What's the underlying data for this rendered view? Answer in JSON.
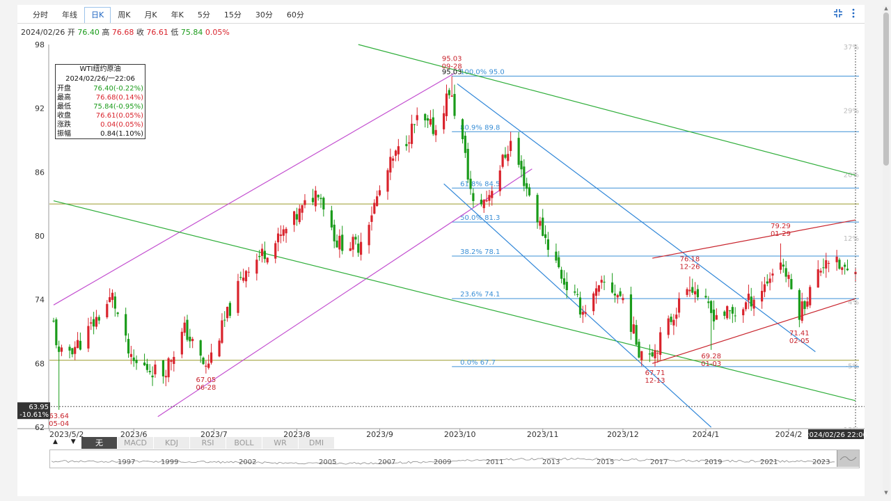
{
  "tabs": [
    {
      "label": "分时",
      "active": false
    },
    {
      "label": "年线",
      "active": false
    },
    {
      "label": "日K",
      "active": true
    },
    {
      "label": "周K",
      "active": false
    },
    {
      "label": "月K",
      "active": false
    },
    {
      "label": "年K",
      "active": false
    },
    {
      "label": "5分",
      "active": false
    },
    {
      "label": "15分",
      "active": false
    },
    {
      "label": "30分",
      "active": false
    },
    {
      "label": "60分",
      "active": false
    }
  ],
  "toolbar": {
    "collapse_icon": "collapse-icon",
    "more_icon": "more-vert-icon"
  },
  "info_bar": {
    "date": "2024/02/26",
    "open_label": "开",
    "open": "76.40",
    "high_label": "高",
    "high": "76.68",
    "close_label": "收",
    "close": "76.61",
    "low_label": "低",
    "low": "75.84",
    "change": "0.05%"
  },
  "legend": {
    "title": "WTI纽约原油",
    "datetime": "2024/02/26/一22:06",
    "rows": [
      {
        "label": "开盘",
        "value": "76.40(-0.22%)",
        "color": "green"
      },
      {
        "label": "最高",
        "value": "76.68(0.14%)",
        "color": "red"
      },
      {
        "label": "最低",
        "value": "75.84(-0.95%)",
        "color": "green"
      },
      {
        "label": "收盘",
        "value": "76.61(0.05%)",
        "color": "red"
      },
      {
        "label": "涨跌",
        "value": "0.04(0.05%)",
        "color": "red"
      },
      {
        "label": "振幅",
        "value": "0.84(1.10%)",
        "color": "black"
      }
    ]
  },
  "cursor": {
    "price": "63.95",
    "pct": "-10.61%",
    "time": "2024/02/26 22:06"
  },
  "indicators": [
    "无",
    "MACD",
    "KDJ",
    "RSI",
    "BOLL",
    "WR",
    "DMI"
  ],
  "nav_arrows": "▲ ▼",
  "mini_years": [
    "1997",
    "1999",
    "2002",
    "2005",
    "2007",
    "2009",
    "2011",
    "2013",
    "2015",
    "2017",
    "2019",
    "2021",
    "2023"
  ],
  "colors": {
    "up": "#d9232c",
    "down": "#1a9b1a",
    "fib": "#3a8fd6",
    "channel_purple": "#c34fd0",
    "channel_green": "#2fae3a",
    "channel_red": "#c8232c",
    "channel_blue": "#2f86d8"
  },
  "chart_data": {
    "type": "candlestick",
    "title": "WTI纽约原油",
    "y_ticks": [
      98,
      92,
      86,
      80,
      74,
      68,
      62
    ],
    "ylim": [
      62,
      98
    ],
    "pct_ticks": [
      "37%",
      "29%",
      "20%",
      "12%",
      "4%",
      "-5%",
      "-13%"
    ],
    "x_ticks": [
      "2023/5/2",
      "2023/6",
      "2023/7",
      "2023/8",
      "2023/9",
      "2023/10",
      "2023/11",
      "2023/12",
      "2024/1",
      "2024/2"
    ],
    "x_tick_dates": [
      "2023-05-02",
      "2023-06-01",
      "2023-07-01",
      "2023-08-01",
      "2023-09-01",
      "2023-10-01",
      "2023-11-01",
      "2023-12-01",
      "2024-01-01",
      "2024-02-01"
    ],
    "date_range": [
      "2023-05-02",
      "2024-02-26"
    ],
    "grid": false,
    "close_anchors": [
      {
        "date": "2023-05-02",
        "close": 71.7
      },
      {
        "date": "2023-05-04",
        "close": 68.6
      },
      {
        "date": "2023-05-12",
        "close": 70.0
      },
      {
        "date": "2023-05-24",
        "close": 74.3
      },
      {
        "date": "2023-05-31",
        "close": 68.1
      },
      {
        "date": "2023-06-12",
        "close": 67.1
      },
      {
        "date": "2023-06-20",
        "close": 71.2
      },
      {
        "date": "2023-06-28",
        "close": 67.5
      },
      {
        "date": "2023-07-13",
        "close": 77.0
      },
      {
        "date": "2023-07-25",
        "close": 79.6
      },
      {
        "date": "2023-08-09",
        "close": 84.4
      },
      {
        "date": "2023-08-16",
        "close": 79.4
      },
      {
        "date": "2023-08-24",
        "close": 79.1
      },
      {
        "date": "2023-09-05",
        "close": 86.7
      },
      {
        "date": "2023-09-15",
        "close": 90.8
      },
      {
        "date": "2023-09-22",
        "close": 90.0
      },
      {
        "date": "2023-09-27",
        "close": 93.7
      },
      {
        "date": "2023-10-02",
        "close": 88.8
      },
      {
        "date": "2023-10-06",
        "close": 82.8
      },
      {
        "date": "2023-10-11",
        "close": 83.5
      },
      {
        "date": "2023-10-20",
        "close": 88.8
      },
      {
        "date": "2023-10-31",
        "close": 81.0
      },
      {
        "date": "2023-11-09",
        "close": 75.7
      },
      {
        "date": "2023-11-16",
        "close": 72.9
      },
      {
        "date": "2023-11-24",
        "close": 75.5
      },
      {
        "date": "2023-12-01",
        "close": 74.1
      },
      {
        "date": "2023-12-07",
        "close": 69.3
      },
      {
        "date": "2023-12-13",
        "close": 69.3
      },
      {
        "date": "2023-12-26",
        "close": 75.6
      },
      {
        "date": "2024-01-03",
        "close": 72.7
      },
      {
        "date": "2024-01-12",
        "close": 72.7
      },
      {
        "date": "2024-01-22",
        "close": 75.0
      },
      {
        "date": "2024-01-29",
        "close": 77.8
      },
      {
        "date": "2024-02-05",
        "close": 72.8
      },
      {
        "date": "2024-02-15",
        "close": 78.0
      },
      {
        "date": "2024-02-23",
        "close": 76.5
      },
      {
        "date": "2024-02-26",
        "close": 76.61
      }
    ],
    "annotations": [
      {
        "value": "95.03",
        "date": "09-28",
        "at": [
          "2023-09-28",
          95.03
        ],
        "pos": "above"
      },
      {
        "value": "67.05",
        "date": "06-28",
        "at": [
          "2023-06-28",
          67.05
        ],
        "pos": "below"
      },
      {
        "value": "63.64",
        "date": "05-04",
        "at": [
          "2023-05-04",
          63.64
        ],
        "pos": "below"
      },
      {
        "value": "67.71",
        "date": "12-13",
        "at": [
          "2023-12-13",
          67.71
        ],
        "pos": "below"
      },
      {
        "value": "76.18",
        "date": "12-26",
        "at": [
          "2023-12-26",
          76.18
        ],
        "pos": "above"
      },
      {
        "value": "69.28",
        "date": "01-03",
        "at": [
          "2024-01-03",
          69.28
        ],
        "pos": "below"
      },
      {
        "value": "79.29",
        "date": "01-29",
        "at": [
          "2024-01-29",
          79.29
        ],
        "pos": "above"
      },
      {
        "value": "71.41",
        "date": "02-05",
        "at": [
          "2024-02-05",
          71.41
        ],
        "pos": "below"
      }
    ],
    "fibonacci": {
      "from_date": "2023-09-28",
      "levels": [
        {
          "label": "100.0% 95.0",
          "price": 95.03
        },
        {
          "label": "80.9% 89.8",
          "price": 89.8
        },
        {
          "label": "61.8% 84.5",
          "price": 84.5
        },
        {
          "label": "50.0% 81.3",
          "price": 81.3
        },
        {
          "label": "38.2% 78.1",
          "price": 78.1
        },
        {
          "label": "23.6% 74.1",
          "price": 74.1
        },
        {
          "label": "0.0% 67.7",
          "price": 67.7
        }
      ]
    },
    "horizontal_lines": [
      83.0,
      68.3
    ],
    "trend_lines": [
      {
        "color": "channel_purple",
        "from": [
          "2023-06-10",
          63.0
        ],
        "to": [
          "2023-10-28",
          86.3
        ]
      },
      {
        "color": "channel_purple",
        "from": [
          "2023-05-02",
          73.5
        ],
        "to": [
          "2023-09-29",
          95.3
        ]
      },
      {
        "color": "channel_green",
        "from": [
          "2023-08-24",
          98.0
        ],
        "to": [
          "2024-02-26",
          85.7
        ]
      },
      {
        "color": "channel_green",
        "from": [
          "2023-05-02",
          83.3
        ],
        "to": [
          "2024-02-26",
          64.5
        ]
      },
      {
        "color": "channel_blue",
        "from": [
          "2023-09-30",
          94.3
        ],
        "to": [
          "2024-02-11",
          69.1
        ]
      },
      {
        "color": "channel_blue",
        "from": [
          "2023-09-25",
          84.9
        ],
        "to": [
          "2024-01-03",
          62.0
        ]
      },
      {
        "color": "channel_red",
        "from": [
          "2023-12-12",
          77.9
        ],
        "to": [
          "2024-02-26",
          81.5
        ]
      },
      {
        "color": "channel_red",
        "from": [
          "2023-12-12",
          68.0
        ],
        "to": [
          "2024-02-26",
          74.1
        ]
      }
    ]
  }
}
